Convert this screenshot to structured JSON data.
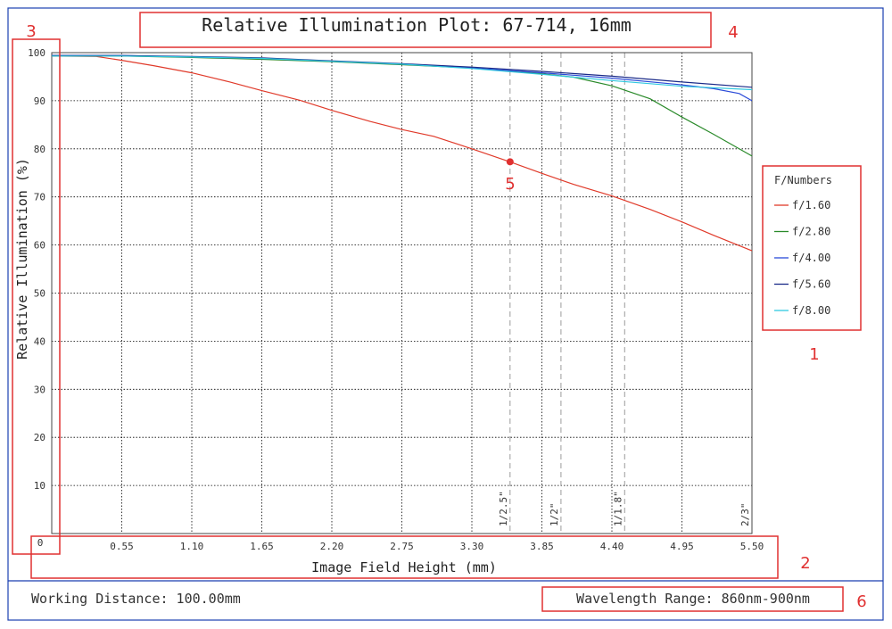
{
  "title": "Relative Illumination Plot: 67-714, 16mm",
  "footer": {
    "working_distance": "Working Distance: 100.00mm",
    "wavelength_range": "Wavelength Range: 860nm-900nm"
  },
  "legend": {
    "title": "F/Numbers"
  },
  "annotations": [
    "1",
    "2",
    "3",
    "4",
    "5",
    "6"
  ],
  "colors": {
    "frame": "#1a3fb0",
    "annotation": "#e03030",
    "grid": "#000000",
    "sensor_line": "#9a9a9a"
  },
  "chart_data": {
    "type": "line",
    "title": "Relative Illumination Plot: 67-714, 16mm",
    "xlabel": "Image Field Height (mm)",
    "ylabel": "Relative Illumination (%)",
    "xlim": [
      0,
      5.5
    ],
    "ylim": [
      0,
      100
    ],
    "x_ticks": [
      "0.55",
      "1.10",
      "1.65",
      "2.20",
      "2.75",
      "3.30",
      "3.85",
      "4.40",
      "4.95",
      "5.50"
    ],
    "y_ticks": [
      "100",
      "90",
      "80",
      "70",
      "60",
      "50",
      "40",
      "30",
      "20",
      "10"
    ],
    "origin_label": "0",
    "grid": true,
    "legend_placement": "right",
    "sensor_markers": [
      {
        "label": "1/2.5\"",
        "x": 3.6
      },
      {
        "label": "1/2\"",
        "x": 4.0
      },
      {
        "label": "1/1.8\"",
        "x": 4.5
      },
      {
        "label": "2/3\"",
        "x": 5.5
      }
    ],
    "marked_point": {
      "x": 3.6,
      "y": 77.3
    },
    "series": [
      {
        "name": "f/1.60",
        "color": "#e03a2a",
        "x": [
          0,
          0.35,
          0.55,
          0.8,
          1.1,
          1.4,
          1.65,
          1.95,
          2.2,
          2.5,
          2.75,
          3.0,
          3.3,
          3.6,
          3.85,
          4.1,
          4.4,
          4.7,
          4.95,
          5.2,
          5.5
        ],
        "y": [
          99.3,
          99.2,
          98.4,
          97.3,
          95.8,
          93.9,
          92.1,
          90.1,
          88.0,
          85.7,
          84.0,
          82.6,
          80.0,
          77.3,
          74.9,
          72.6,
          70.2,
          67.4,
          64.8,
          62.0,
          58.8
        ]
      },
      {
        "name": "f/2.80",
        "color": "#2a8a2a",
        "x": [
          0,
          0.55,
          1.1,
          1.65,
          2.2,
          2.75,
          3.3,
          3.85,
          4.1,
          4.4,
          4.7,
          4.95,
          5.2,
          5.5
        ],
        "y": [
          99.3,
          99.3,
          99.0,
          98.6,
          98.1,
          97.5,
          96.8,
          95.6,
          94.9,
          93.1,
          90.4,
          86.6,
          83.0,
          78.5
        ]
      },
      {
        "name": "f/4.00",
        "color": "#2a4ad8",
        "x": [
          0,
          0.55,
          1.1,
          1.65,
          2.2,
          2.75,
          3.3,
          3.85,
          4.4,
          4.95,
          5.2,
          5.4,
          5.5
        ],
        "y": [
          99.4,
          99.4,
          99.1,
          98.8,
          98.2,
          97.6,
          96.8,
          95.8,
          94.7,
          93.3,
          92.5,
          91.5,
          90.0
        ]
      },
      {
        "name": "f/5.60",
        "color": "#1a2a88",
        "x": [
          0,
          0.55,
          1.1,
          1.65,
          2.2,
          2.75,
          3.3,
          3.85,
          4.4,
          4.95,
          5.5
        ],
        "y": [
          99.4,
          99.4,
          99.2,
          98.9,
          98.3,
          97.7,
          97.0,
          96.1,
          95.1,
          93.9,
          92.8
        ]
      },
      {
        "name": "f/8.00",
        "color": "#30c8e0",
        "x": [
          0,
          0.55,
          1.1,
          1.65,
          2.2,
          2.75,
          3.3,
          3.85,
          4.4,
          4.95,
          5.5
        ],
        "y": [
          99.3,
          99.3,
          99.1,
          98.8,
          98.2,
          97.6,
          96.7,
          95.5,
          94.2,
          93.0,
          92.3
        ]
      }
    ]
  }
}
